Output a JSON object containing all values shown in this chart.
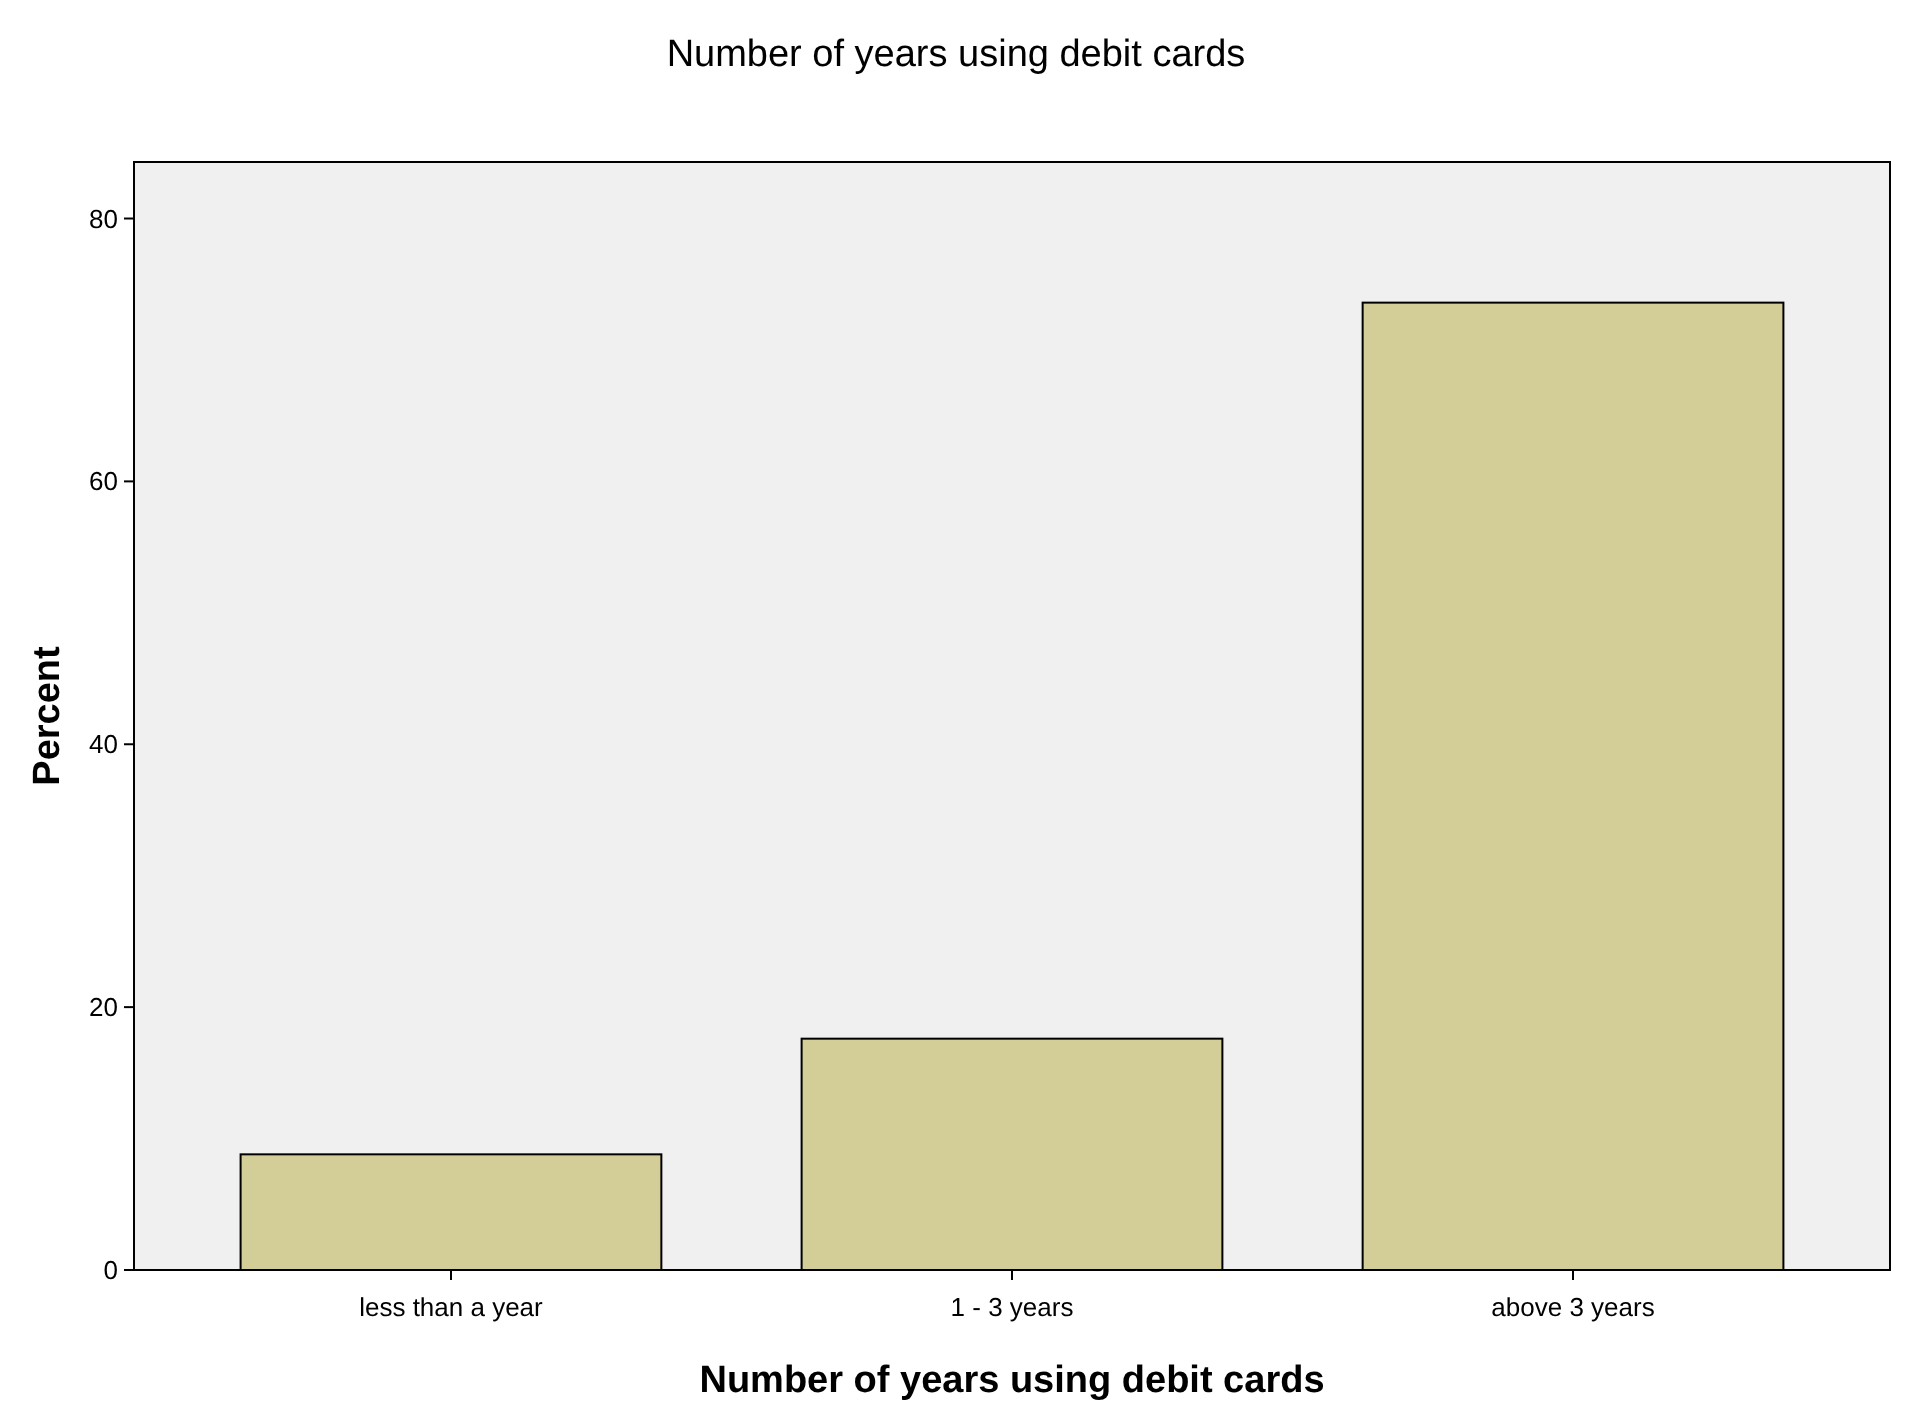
{
  "chart_data": {
    "type": "bar",
    "title": "Number of years using debit cards",
    "xlabel": "Number of years using debit cards",
    "ylabel": "Percent",
    "categories": [
      "less than a year",
      "1 - 3 years",
      "above 3 years"
    ],
    "values": [
      8.8,
      17.6,
      73.6
    ],
    "color": "#d3ce97",
    "ylim": [
      0,
      84.3
    ],
    "yticks": [
      0,
      20,
      40,
      60,
      80
    ]
  }
}
